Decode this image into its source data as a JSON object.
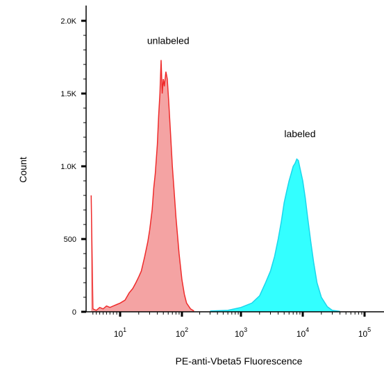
{
  "chart_data": {
    "type": "area",
    "xlabel": "PE-anti-Vbeta5 Fluorescence",
    "ylabel": "Count",
    "x_scale": "biexponential",
    "y_scale": "linear",
    "ylim": [
      0,
      2000
    ],
    "yticks": [
      0,
      500,
      1000,
      1500,
      2000
    ],
    "ytick_labels": [
      "0",
      "500",
      "1.0K",
      "1.5K",
      "2.0K"
    ],
    "xticks": [
      10,
      100,
      1000,
      10000,
      100000
    ],
    "xtick_bases": [
      "10",
      "10",
      "10",
      "10",
      "10"
    ],
    "xtick_exps": [
      "1",
      "2",
      "3",
      "4",
      "5"
    ],
    "grid": false,
    "series": [
      {
        "name": "unlabeled",
        "fill": "#f4a3a3",
        "stroke": "#ef2b2b",
        "points": [
          [
            1.5,
            800
          ],
          [
            2,
            20
          ],
          [
            3,
            10
          ],
          [
            4,
            30
          ],
          [
            5,
            20
          ],
          [
            6,
            40
          ],
          [
            7,
            30
          ],
          [
            8,
            40
          ],
          [
            9,
            50
          ],
          [
            10,
            60
          ],
          [
            12,
            80
          ],
          [
            14,
            130
          ],
          [
            16,
            160
          ],
          [
            18,
            200
          ],
          [
            20,
            240
          ],
          [
            22,
            280
          ],
          [
            25,
            380
          ],
          [
            28,
            480
          ],
          [
            30,
            560
          ],
          [
            33,
            700
          ],
          [
            35,
            850
          ],
          [
            37,
            950
          ],
          [
            40,
            1150
          ],
          [
            42,
            1350
          ],
          [
            44,
            1500
          ],
          [
            46,
            1730
          ],
          [
            48,
            1500
          ],
          [
            50,
            1600
          ],
          [
            52,
            1550
          ],
          [
            55,
            1650
          ],
          [
            58,
            1600
          ],
          [
            61,
            1450
          ],
          [
            65,
            1250
          ],
          [
            70,
            1000
          ],
          [
            75,
            820
          ],
          [
            80,
            650
          ],
          [
            90,
            400
          ],
          [
            100,
            220
          ],
          [
            110,
            120
          ],
          [
            120,
            60
          ],
          [
            140,
            20
          ],
          [
            160,
            5
          ]
        ]
      },
      {
        "name": "labeled",
        "fill": "#33ffff",
        "stroke": "#1ad6ec",
        "points": [
          [
            300,
            5
          ],
          [
            600,
            10
          ],
          [
            1000,
            30
          ],
          [
            1500,
            60
          ],
          [
            2000,
            110
          ],
          [
            2500,
            200
          ],
          [
            3000,
            280
          ],
          [
            3500,
            380
          ],
          [
            4000,
            500
          ],
          [
            4500,
            620
          ],
          [
            5000,
            750
          ],
          [
            5500,
            830
          ],
          [
            6000,
            900
          ],
          [
            6500,
            950
          ],
          [
            7000,
            1000
          ],
          [
            7500,
            1020
          ],
          [
            8000,
            1050
          ],
          [
            8500,
            1040
          ],
          [
            9000,
            990
          ],
          [
            10000,
            900
          ],
          [
            11000,
            780
          ],
          [
            12000,
            650
          ],
          [
            13500,
            480
          ],
          [
            15000,
            340
          ],
          [
            17000,
            200
          ],
          [
            20000,
            100
          ],
          [
            25000,
            35
          ],
          [
            30000,
            10
          ],
          [
            40000,
            3
          ]
        ]
      }
    ],
    "annotations": [
      {
        "text": "unlabeled",
        "x": 60,
        "y": 1840
      },
      {
        "text": "labeled",
        "x": 9000,
        "y": 1200
      }
    ]
  }
}
